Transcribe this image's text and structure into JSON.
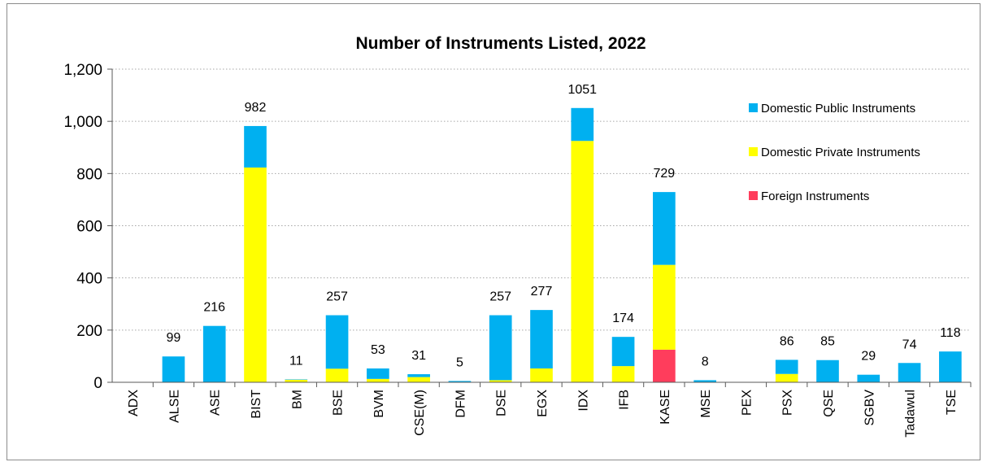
{
  "chart_data": {
    "type": "bar",
    "stacked": true,
    "title": "Number of Instruments Listed, 2022",
    "xlabel": "",
    "ylabel": "",
    "ylim": [
      0,
      1200
    ],
    "yticks": [
      0,
      200,
      400,
      600,
      800,
      1000,
      1200
    ],
    "ytick_labels": [
      "0",
      "200",
      "400",
      "600",
      "800",
      "1,000",
      "1,200"
    ],
    "grid": "horizontal dotted",
    "legend_position": "top-right",
    "categories": [
      "ADX",
      "ALSE",
      "ASE",
      "BIST",
      "BM",
      "BSE",
      "BVM",
      "CSE(M)",
      "DFM",
      "DSE",
      "EGX",
      "IDX",
      "IFB",
      "KASE",
      "MSE",
      "PEX",
      "PSX",
      "QSE",
      "SGBV",
      "Tadawul",
      "TSE"
    ],
    "series": [
      {
        "name": "Foreign Instruments",
        "color": "#ff3d5c",
        "values": [
          0,
          0,
          0,
          0,
          0,
          0,
          0,
          0,
          0,
          0,
          0,
          0,
          0,
          125,
          0,
          0,
          0,
          0,
          0,
          0,
          0
        ]
      },
      {
        "name": "Domestic Private Instruments",
        "color": "#ffff00",
        "values": [
          0,
          0,
          0,
          823,
          10,
          52,
          13,
          20,
          0,
          8,
          53,
          925,
          62,
          325,
          0,
          0,
          32,
          0,
          0,
          0,
          0
        ]
      },
      {
        "name": "Domestic Public Instruments",
        "color": "#00b0f0",
        "values": [
          0,
          99,
          216,
          159,
          1,
          205,
          40,
          11,
          5,
          249,
          224,
          126,
          112,
          279,
          8,
          0,
          54,
          85,
          29,
          74,
          118
        ]
      }
    ],
    "totals": [
      null,
      99,
      216,
      982,
      11,
      257,
      53,
      31,
      5,
      257,
      277,
      1051,
      174,
      729,
      8,
      null,
      86,
      85,
      29,
      74,
      118
    ],
    "legend_order": [
      "Domestic Public Instruments",
      "Domestic Private Instruments",
      "Foreign Instruments"
    ]
  }
}
